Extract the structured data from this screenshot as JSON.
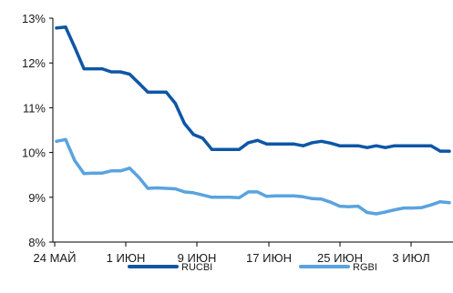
{
  "chart_data": {
    "type": "line",
    "title": "",
    "xlabel": "",
    "ylabel": "",
    "ylim": [
      8,
      13
    ],
    "y_ticks": [
      "8%",
      "9%",
      "10%",
      "11%",
      "12%",
      "13%"
    ],
    "x_ticks": [
      "24 МАЙ",
      "1 ИЮН",
      "9 ИЮН",
      "17 ИЮН",
      "25 ИЮН",
      "3 ИЮЛ"
    ],
    "grid": false,
    "legend_position": "bottom",
    "series": [
      {
        "name": "RUCBI",
        "color": "#0d56a6",
        "values": [
          12.78,
          12.8,
          12.35,
          11.87,
          11.87,
          11.87,
          11.8,
          11.8,
          11.75,
          11.55,
          11.35,
          11.35,
          11.35,
          11.1,
          10.65,
          10.4,
          10.32,
          10.07,
          10.07,
          10.07,
          10.07,
          10.22,
          10.27,
          10.19,
          10.19,
          10.19,
          10.19,
          10.15,
          10.22,
          10.25,
          10.21,
          10.15,
          10.15,
          10.15,
          10.11,
          10.15,
          10.11,
          10.15,
          10.15,
          10.15,
          10.15,
          10.15,
          10.03,
          10.03
        ]
      },
      {
        "name": "RGBI",
        "color": "#5aa3e0",
        "values": [
          10.25,
          10.29,
          9.82,
          9.53,
          9.54,
          9.54,
          9.59,
          9.59,
          9.65,
          9.45,
          9.2,
          9.21,
          9.2,
          9.19,
          9.12,
          9.1,
          9.05,
          9.0,
          9.0,
          9.0,
          8.99,
          9.12,
          9.12,
          9.02,
          9.03,
          9.03,
          9.03,
          9.01,
          8.97,
          8.96,
          8.89,
          8.8,
          8.79,
          8.8,
          8.66,
          8.63,
          8.67,
          8.72,
          8.76,
          8.76,
          8.77,
          8.83,
          8.9,
          8.88
        ]
      }
    ]
  }
}
